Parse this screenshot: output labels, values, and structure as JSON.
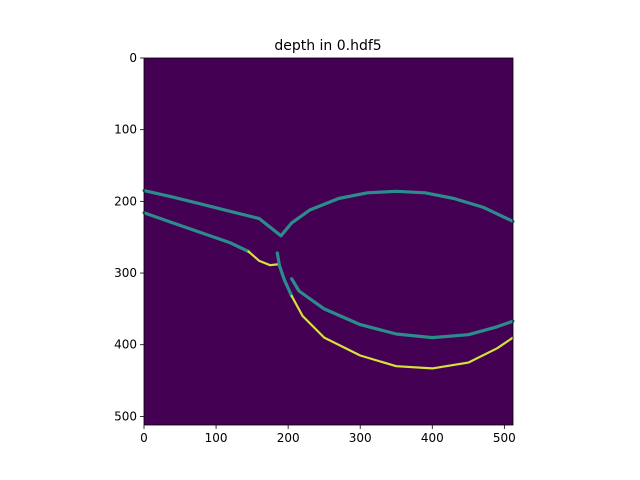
{
  "chart_data": {
    "type": "heatmap",
    "title": "depth in 0.hdf5",
    "xlabel": "",
    "ylabel": "",
    "xlim": [
      0,
      512
    ],
    "ylim": [
      512,
      0
    ],
    "x_ticks": [
      0,
      100,
      200,
      300,
      400,
      500
    ],
    "y_ticks": [
      0,
      100,
      200,
      300,
      400,
      500
    ],
    "grid": false,
    "colormap": "viridis",
    "colors": {
      "background": "#440154",
      "edge_mid": "#2a8d8c",
      "edge_high": "#d6e23a",
      "figure_bg": "#ffffff"
    },
    "curves": [
      {
        "name": "",
        "color": "#2a8d8c",
        "points": [
          [
            0,
            185
          ],
          [
            40,
            194
          ],
          [
            80,
            204
          ],
          [
            120,
            214
          ],
          [
            160,
            224
          ],
          [
            190,
            248
          ],
          [
            205,
            230
          ],
          [
            230,
            212
          ],
          [
            270,
            196
          ],
          [
            310,
            188
          ],
          [
            350,
            186
          ],
          [
            390,
            188
          ],
          [
            430,
            196
          ],
          [
            470,
            208
          ],
          [
            512,
            228
          ]
        ]
      },
      {
        "name": "",
        "color": "#2a8d8c",
        "points": [
          [
            0,
            216
          ],
          [
            40,
            230
          ],
          [
            80,
            244
          ],
          [
            120,
            258
          ],
          [
            145,
            270
          ]
        ]
      },
      {
        "name": "",
        "color": "#d6e23a",
        "points": [
          [
            145,
            270
          ],
          [
            160,
            283
          ],
          [
            175,
            289
          ],
          [
            185,
            288
          ]
        ]
      },
      {
        "name": "",
        "color": "#2a8d8c",
        "points": [
          [
            185,
            272
          ],
          [
            188,
            290
          ],
          [
            195,
            310
          ],
          [
            205,
            332
          ]
        ]
      },
      {
        "name": "",
        "color": "#d6e23a",
        "points": [
          [
            205,
            332
          ],
          [
            220,
            360
          ],
          [
            250,
            390
          ],
          [
            300,
            415
          ],
          [
            350,
            430
          ],
          [
            400,
            433
          ],
          [
            450,
            425
          ],
          [
            490,
            405
          ],
          [
            512,
            390
          ]
        ]
      },
      {
        "name": "",
        "color": "#2a8d8c",
        "points": [
          [
            205,
            308
          ],
          [
            215,
            325
          ],
          [
            250,
            350
          ],
          [
            300,
            372
          ],
          [
            350,
            385
          ],
          [
            400,
            390
          ],
          [
            450,
            386
          ],
          [
            490,
            375
          ],
          [
            512,
            367
          ]
        ]
      }
    ]
  }
}
